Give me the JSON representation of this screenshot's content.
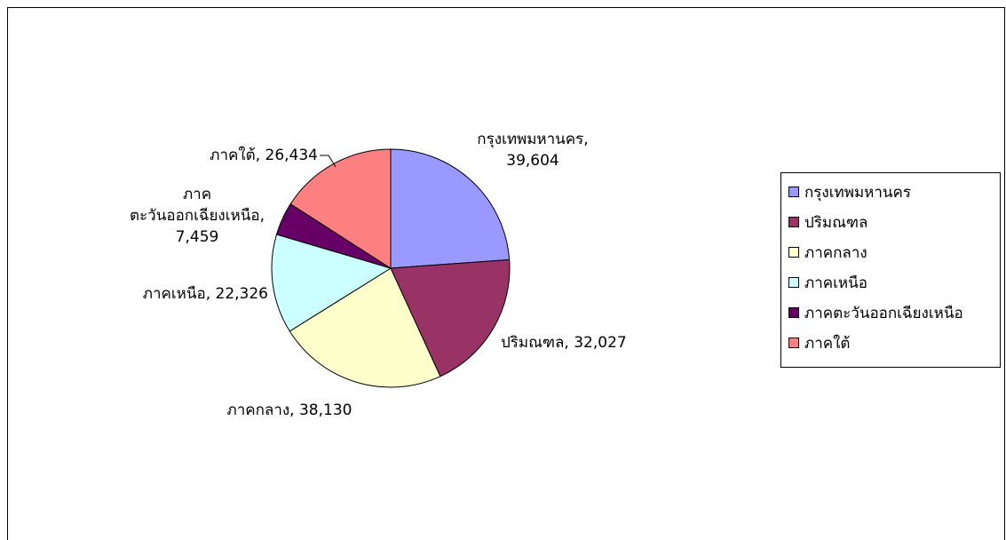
{
  "chart_data": {
    "type": "pie",
    "title": "",
    "slices": [
      {
        "name": "กรุงเทพมหานคร",
        "value": 39604,
        "value_label": "39,604",
        "color": "#9999FF"
      },
      {
        "name": "ปริมณฑล",
        "value": 32027,
        "value_label": "32,027",
        "color": "#993366"
      },
      {
        "name": "ภาคกลาง",
        "value": 38130,
        "value_label": "38,130",
        "color": "#FFFFCC"
      },
      {
        "name": "ภาคเหนือ",
        "value": 22326,
        "value_label": "22,326",
        "color": "#CCFFFF"
      },
      {
        "name": "ภาคตะวันออกเฉียงเหนือ",
        "value": 7459,
        "value_label": "7,459",
        "color": "#660066"
      },
      {
        "name": "ภาคใต้",
        "value": 26434,
        "value_label": "26,434",
        "color": "#FF8080"
      }
    ],
    "data_labels": [
      {
        "lines": [
          "กรุงเทพมหานคร,",
          "39,604"
        ]
      },
      {
        "lines": [
          "ปริมณฑล, 32,027"
        ]
      },
      {
        "lines": [
          "ภาคกลาง, 38,130"
        ]
      },
      {
        "lines": [
          "ภาคเหนือ, 22,326"
        ]
      },
      {
        "lines": [
          "ภาค",
          "ตะวันออกเฉียงเหนือ,",
          "7,459"
        ]
      },
      {
        "lines": [
          "ภาคใต้, 26,434"
        ]
      }
    ],
    "legend": {
      "placement": "right",
      "entries": [
        "กรุงเทพมหานคร",
        "ปริมณฑล",
        "ภาคกลาง",
        "ภาคเหนือ",
        "ภาคตะวันออกเฉียงเหนือ",
        "ภาคใต้"
      ]
    }
  }
}
